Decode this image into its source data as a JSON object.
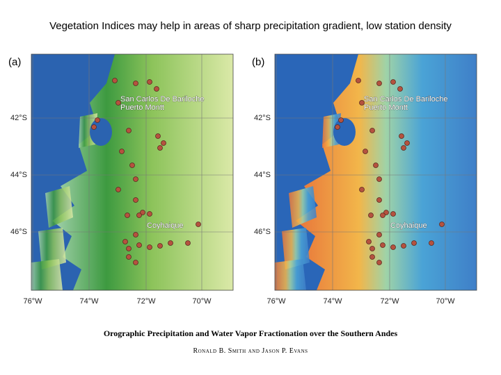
{
  "title": "Vegetation Indices may help in areas of sharp precipitation gradient, low station density",
  "panels": [
    {
      "label": "(a)",
      "lat_labels": [
        "42°S",
        "44°S",
        "46°S"
      ],
      "lon_labels": [
        "76°W",
        "74°W",
        "72°W",
        "70°W"
      ],
      "places": [
        "San Carlos De Bariloche",
        "Puerto Montt",
        "Coyhaique"
      ]
    },
    {
      "label": "(b)",
      "lat_labels": [
        "42°S",
        "44°S",
        "46°S"
      ],
      "lon_labels": [
        "76°W",
        "74°W",
        "72°W",
        "70°W"
      ],
      "places": [
        "San Carlos De Bariloche",
        "Puerto Montt",
        "Coyhaique"
      ]
    }
  ],
  "caption": {
    "title": "Orographic Precipitation and Water Vapor Fractionation over the Southern Andes",
    "authors": "Ronald B. Smith and Jason P. Evans"
  }
}
